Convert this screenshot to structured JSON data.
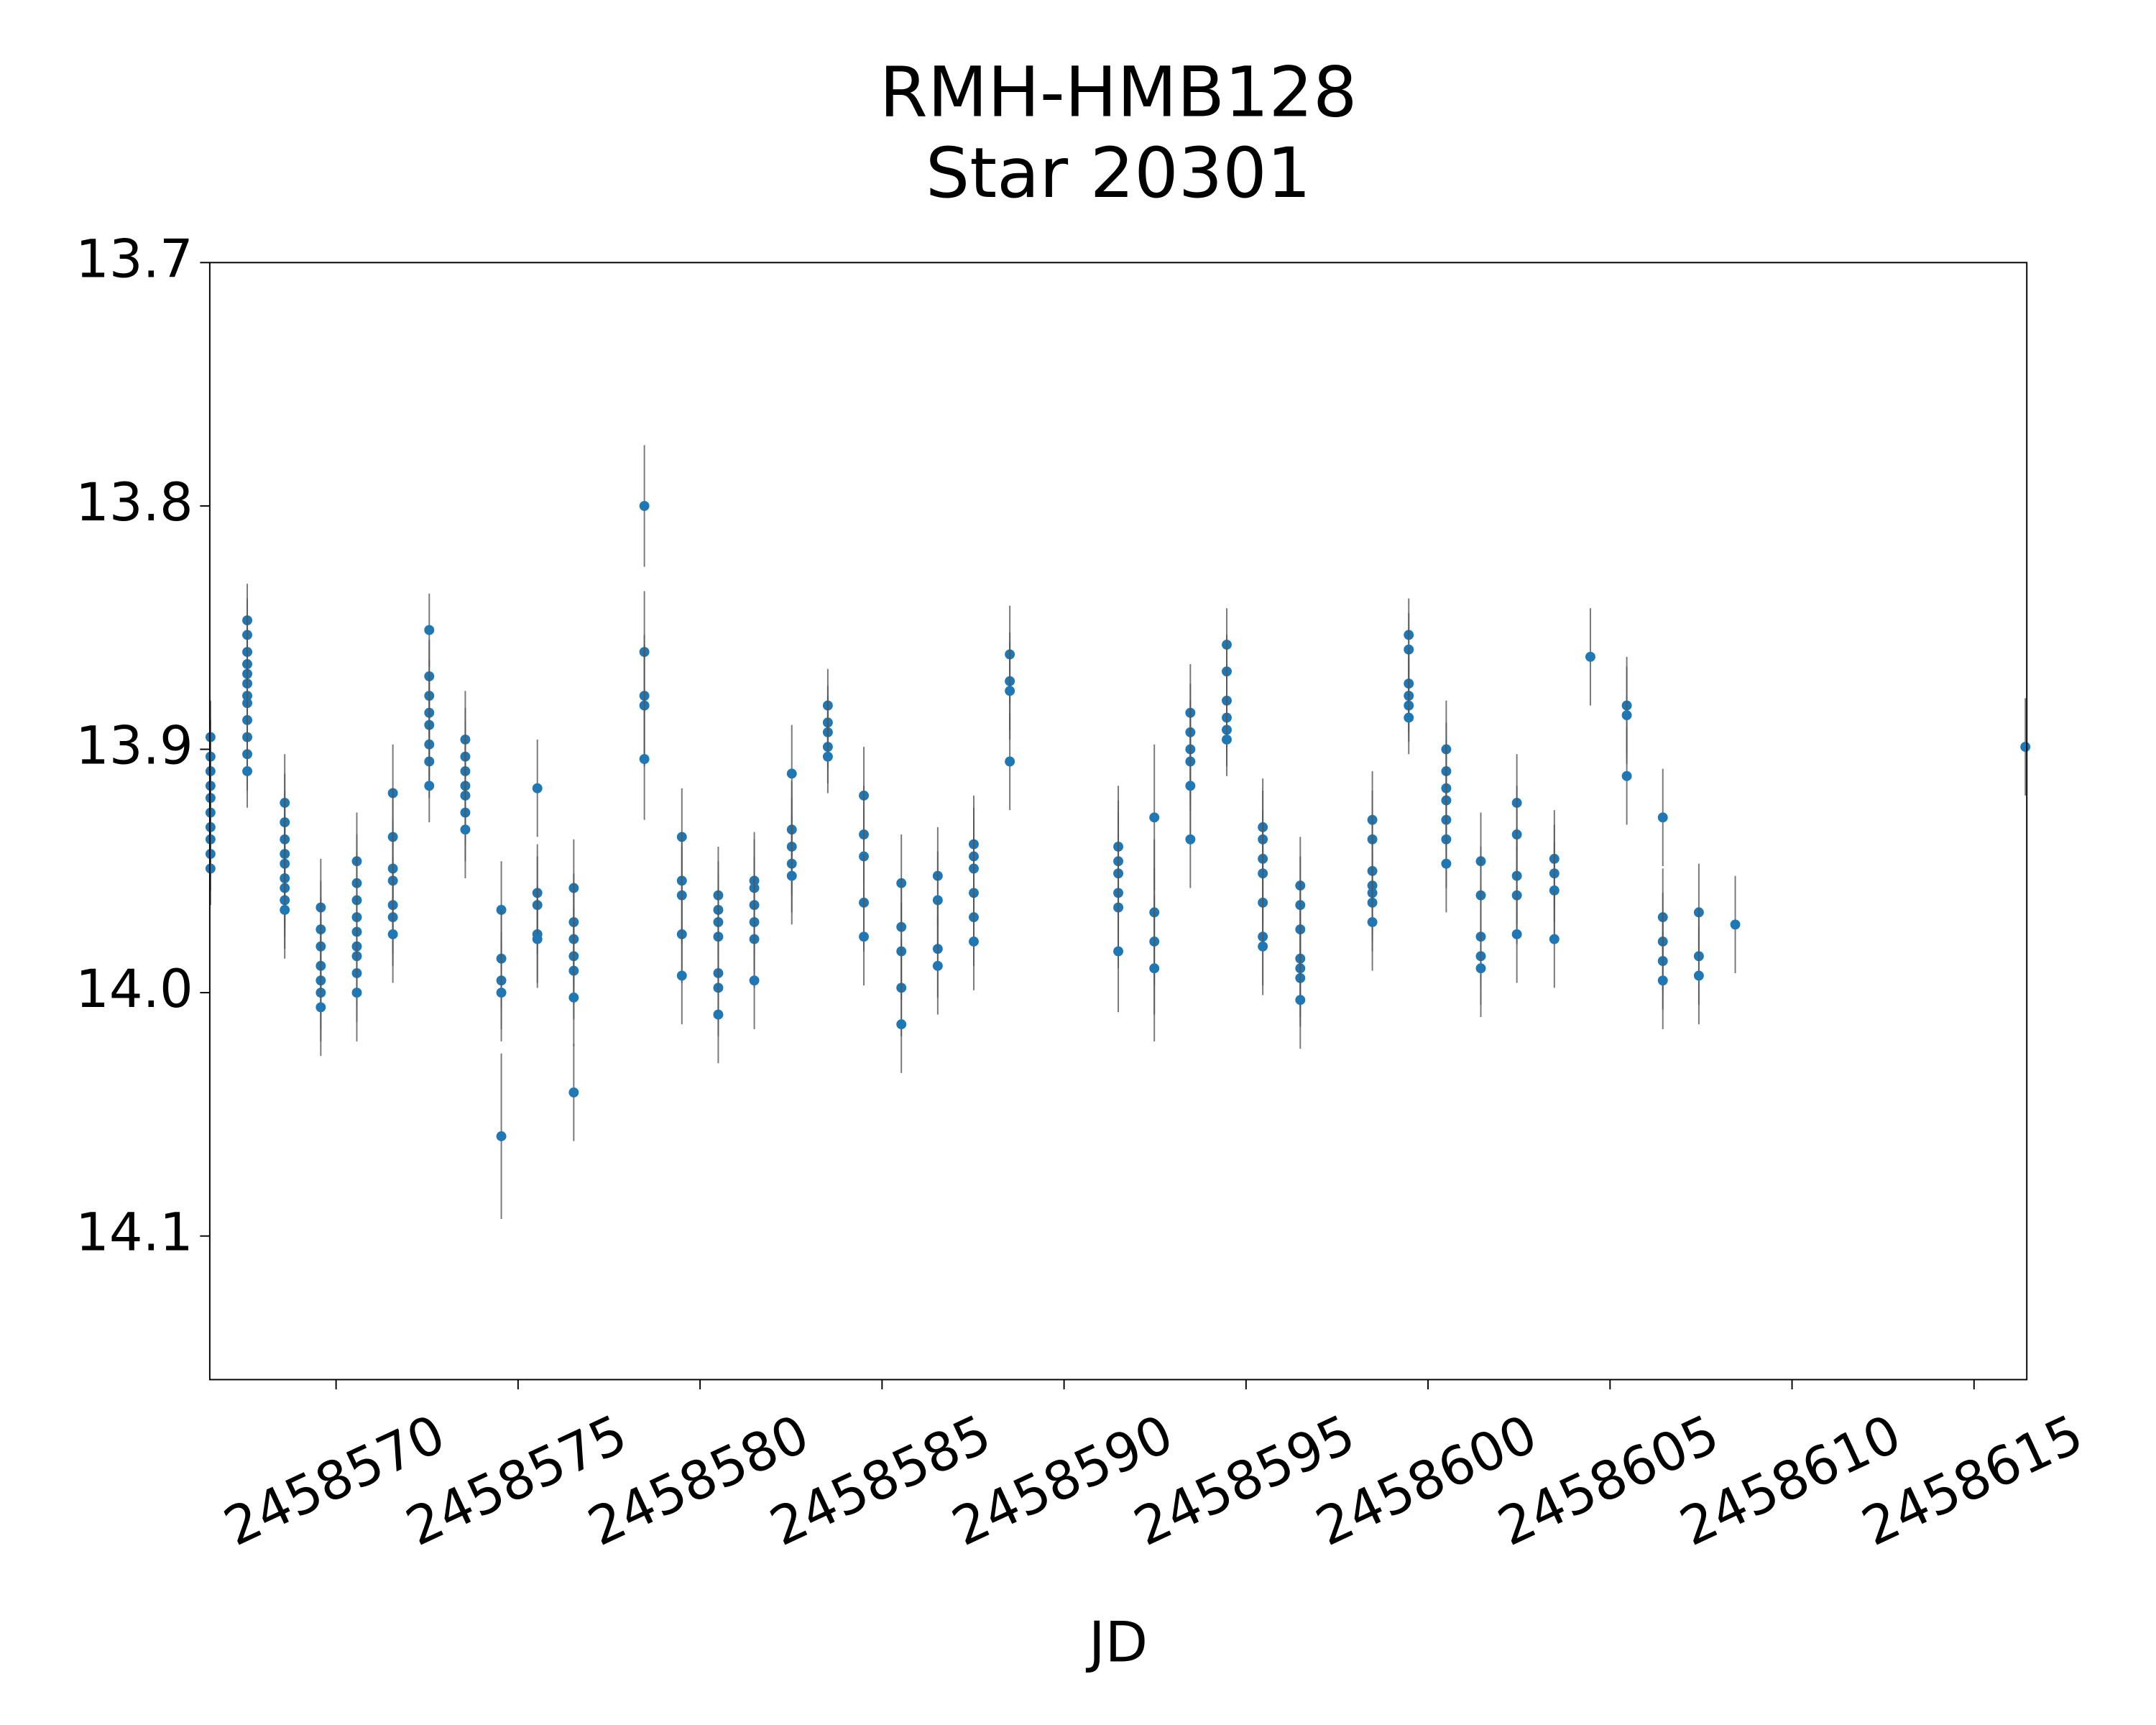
{
  "chart_data": {
    "type": "scatter",
    "title": "RMH-HMB128",
    "subtitle": "Star 20301",
    "x_label": "JD",
    "xlim": [
      2458566.53,
      2458616.45
    ],
    "ylim": [
      13.7,
      14.159
    ],
    "invert_y": true,
    "xticks": [
      2458570,
      2458575,
      2458580,
      2458585,
      2458590,
      2458595,
      2458600,
      2458605,
      2458610,
      2458615
    ],
    "yticks": [
      13.7,
      13.8,
      13.9,
      {
        "value": 14.0,
        "label": "14.0"
      },
      14.1
    ],
    "series": [
      {
        "color": "#1f77b4",
        "error_color": "#555555",
        "x": [
          2458566.55,
          2458566.55,
          2458566.55,
          2458566.55,
          2458566.55,
          2458566.55,
          2458566.55,
          2458566.55,
          2458566.55,
          2458566.55,
          2458567.56,
          2458567.56,
          2458567.56,
          2458567.56,
          2458567.56,
          2458567.56,
          2458567.56,
          2458567.56,
          2458567.56,
          2458567.56,
          2458567.56,
          2458567.56,
          2458568.59,
          2458568.59,
          2458568.59,
          2458568.59,
          2458568.59,
          2458568.59,
          2458568.59,
          2458568.59,
          2458568.59,
          2458569.58,
          2458569.58,
          2458569.58,
          2458569.58,
          2458569.58,
          2458569.58,
          2458569.58,
          2458570.57,
          2458570.57,
          2458570.57,
          2458570.57,
          2458570.57,
          2458570.57,
          2458570.57,
          2458570.57,
          2458570.57,
          2458571.56,
          2458571.56,
          2458571.56,
          2458571.56,
          2458571.56,
          2458571.56,
          2458571.56,
          2458572.56,
          2458572.56,
          2458572.56,
          2458572.56,
          2458572.56,
          2458572.56,
          2458572.56,
          2458572.56,
          2458573.55,
          2458573.55,
          2458573.55,
          2458573.55,
          2458573.55,
          2458573.55,
          2458573.55,
          2458574.54,
          2458574.54,
          2458574.54,
          2458574.54,
          2458574.54,
          2458575.53,
          2458575.53,
          2458575.53,
          2458575.53,
          2458575.53,
          2458576.53,
          2458576.53,
          2458576.53,
          2458576.53,
          2458576.53,
          2458576.53,
          2458576.53,
          2458578.47,
          2458578.47,
          2458578.47,
          2458578.47,
          2458578.47,
          2458579.5,
          2458579.5,
          2458579.5,
          2458579.5,
          2458579.5,
          2458580.5,
          2458580.5,
          2458580.5,
          2458580.5,
          2458580.5,
          2458580.5,
          2458580.5,
          2458581.49,
          2458581.49,
          2458581.49,
          2458581.49,
          2458581.49,
          2458581.49,
          2458582.52,
          2458582.52,
          2458582.52,
          2458582.52,
          2458582.52,
          2458583.51,
          2458583.51,
          2458583.51,
          2458583.51,
          2458583.51,
          2458584.5,
          2458584.5,
          2458584.5,
          2458584.5,
          2458584.5,
          2458585.53,
          2458585.53,
          2458585.53,
          2458585.53,
          2458585.53,
          2458586.53,
          2458586.53,
          2458586.53,
          2458586.53,
          2458587.52,
          2458587.52,
          2458587.52,
          2458587.52,
          2458587.52,
          2458587.52,
          2458588.51,
          2458588.51,
          2458588.51,
          2458588.51,
          2458591.49,
          2458591.49,
          2458591.49,
          2458591.49,
          2458591.49,
          2458591.49,
          2458592.48,
          2458592.48,
          2458592.48,
          2458592.48,
          2458593.47,
          2458593.47,
          2458593.47,
          2458593.47,
          2458593.47,
          2458593.47,
          2458594.47,
          2458594.47,
          2458594.47,
          2458594.47,
          2458594.47,
          2458594.47,
          2458595.46,
          2458595.46,
          2458595.46,
          2458595.46,
          2458595.46,
          2458595.46,
          2458595.46,
          2458596.49,
          2458596.49,
          2458596.49,
          2458596.49,
          2458596.49,
          2458596.49,
          2458596.49,
          2458598.47,
          2458598.47,
          2458598.47,
          2458598.47,
          2458598.47,
          2458598.47,
          2458598.47,
          2458599.47,
          2458599.47,
          2458599.47,
          2458599.47,
          2458599.47,
          2458599.47,
          2458600.5,
          2458600.5,
          2458600.5,
          2458600.5,
          2458600.5,
          2458600.5,
          2458600.5,
          2458601.45,
          2458601.45,
          2458601.45,
          2458601.45,
          2458601.45,
          2458602.44,
          2458602.44,
          2458602.44,
          2458602.44,
          2458602.44,
          2458603.47,
          2458603.47,
          2458603.47,
          2458603.47,
          2458604.46,
          2458605.46,
          2458605.46,
          2458605.46,
          2458606.45,
          2458606.45,
          2458606.45,
          2458606.45,
          2458606.45,
          2458607.44,
          2458607.44,
          2458607.44,
          2458608.44,
          2458616.41
        ],
        "values": [
          13.895,
          13.903,
          13.909,
          13.915,
          13.92,
          13.926,
          13.932,
          13.937,
          13.943,
          13.949,
          13.847,
          13.853,
          13.86,
          13.865,
          13.869,
          13.873,
          13.878,
          13.881,
          13.888,
          13.895,
          13.902,
          13.909,
          13.922,
          13.93,
          13.937,
          13.943,
          13.947,
          13.953,
          13.957,
          13.962,
          13.966,
          13.965,
          13.974,
          13.981,
          13.989,
          13.995,
          14.0,
          14.006,
          13.946,
          13.955,
          13.962,
          13.969,
          13.975,
          13.981,
          13.985,
          13.992,
          14.0,
          13.918,
          13.936,
          13.949,
          13.954,
          13.964,
          13.969,
          13.976,
          13.851,
          13.87,
          13.878,
          13.885,
          13.89,
          13.898,
          13.905,
          13.915,
          13.896,
          13.903,
          13.909,
          13.915,
          13.919,
          13.926,
          13.933,
          13.966,
          13.986,
          13.995,
          14.0,
          14.059,
          13.916,
          13.959,
          13.964,
          13.976,
          13.978,
          13.957,
          13.971,
          13.978,
          13.985,
          13.991,
          14.002,
          14.041,
          13.8,
          13.86,
          13.878,
          13.882,
          13.904,
          13.936,
          13.954,
          13.96,
          13.976,
          13.993,
          13.96,
          13.966,
          13.971,
          13.977,
          13.992,
          13.998,
          14.009,
          13.954,
          13.957,
          13.964,
          13.971,
          13.978,
          13.995,
          13.91,
          13.933,
          13.94,
          13.947,
          13.952,
          13.882,
          13.889,
          13.893,
          13.899,
          13.903,
          13.919,
          13.935,
          13.944,
          13.963,
          13.977,
          13.955,
          13.973,
          13.983,
          13.998,
          14.013,
          13.952,
          13.962,
          13.982,
          13.989,
          13.939,
          13.944,
          13.949,
          13.959,
          13.969,
          13.979,
          13.861,
          13.872,
          13.876,
          13.905,
          13.94,
          13.946,
          13.951,
          13.959,
          13.965,
          13.983,
          13.928,
          13.967,
          13.979,
          13.99,
          13.885,
          13.893,
          13.9,
          13.905,
          13.915,
          13.937,
          13.857,
          13.868,
          13.88,
          13.887,
          13.892,
          13.896,
          13.932,
          13.937,
          13.945,
          13.951,
          13.963,
          13.977,
          13.981,
          13.956,
          13.964,
          13.974,
          13.986,
          13.99,
          13.994,
          14.003,
          13.929,
          13.937,
          13.95,
          13.956,
          13.959,
          13.963,
          13.971,
          13.853,
          13.859,
          13.873,
          13.878,
          13.882,
          13.887,
          13.9,
          13.909,
          13.916,
          13.921,
          13.929,
          13.937,
          13.947,
          13.946,
          13.96,
          13.977,
          13.985,
          13.99,
          13.922,
          13.935,
          13.952,
          13.96,
          13.976,
          13.945,
          13.951,
          13.958,
          13.978,
          13.862,
          13.882,
          13.886,
          13.911,
          13.928,
          13.969,
          13.979,
          13.987,
          13.995,
          13.967,
          13.985,
          13.993,
          13.972,
          13.899
        ],
        "errors": [
          0.015,
          0.015,
          0.015,
          0.015,
          0.015,
          0.015,
          0.015,
          0.015,
          0.015,
          0.015,
          0.015,
          0.015,
          0.015,
          0.015,
          0.015,
          0.015,
          0.015,
          0.015,
          0.015,
          0.015,
          0.015,
          0.015,
          0.02,
          0.02,
          0.02,
          0.02,
          0.02,
          0.02,
          0.02,
          0.02,
          0.02,
          0.02,
          0.02,
          0.02,
          0.02,
          0.02,
          0.02,
          0.02,
          0.02,
          0.02,
          0.02,
          0.02,
          0.02,
          0.02,
          0.02,
          0.02,
          0.02,
          0.02,
          0.02,
          0.02,
          0.02,
          0.02,
          0.02,
          0.02,
          0.015,
          0.015,
          0.015,
          0.015,
          0.015,
          0.015,
          0.015,
          0.015,
          0.02,
          0.02,
          0.02,
          0.02,
          0.02,
          0.02,
          0.02,
          0.02,
          0.02,
          0.02,
          0.02,
          0.034,
          0.02,
          0.02,
          0.02,
          0.02,
          0.02,
          0.02,
          0.02,
          0.02,
          0.02,
          0.02,
          0.02,
          0.02,
          0.025,
          0.025,
          0.025,
          0.025,
          0.025,
          0.02,
          0.02,
          0.02,
          0.02,
          0.02,
          0.02,
          0.02,
          0.02,
          0.02,
          0.02,
          0.02,
          0.02,
          0.02,
          0.02,
          0.02,
          0.02,
          0.02,
          0.02,
          0.02,
          0.02,
          0.02,
          0.02,
          0.02,
          0.015,
          0.015,
          0.015,
          0.015,
          0.015,
          0.02,
          0.02,
          0.02,
          0.02,
          0.02,
          0.02,
          0.02,
          0.02,
          0.02,
          0.02,
          0.02,
          0.02,
          0.02,
          0.02,
          0.02,
          0.02,
          0.02,
          0.02,
          0.02,
          0.02,
          0.02,
          0.02,
          0.02,
          0.02,
          0.025,
          0.025,
          0.025,
          0.025,
          0.025,
          0.025,
          0.03,
          0.03,
          0.03,
          0.03,
          0.02,
          0.02,
          0.02,
          0.02,
          0.02,
          0.02,
          0.015,
          0.015,
          0.015,
          0.015,
          0.015,
          0.015,
          0.02,
          0.02,
          0.02,
          0.02,
          0.02,
          0.02,
          0.02,
          0.02,
          0.02,
          0.02,
          0.02,
          0.02,
          0.02,
          0.02,
          0.02,
          0.02,
          0.02,
          0.02,
          0.02,
          0.02,
          0.02,
          0.015,
          0.015,
          0.015,
          0.015,
          0.015,
          0.015,
          0.02,
          0.02,
          0.02,
          0.02,
          0.02,
          0.02,
          0.02,
          0.02,
          0.02,
          0.02,
          0.02,
          0.02,
          0.02,
          0.02,
          0.02,
          0.02,
          0.02,
          0.02,
          0.02,
          0.02,
          0.02,
          0.02,
          0.02,
          0.02,
          0.02,
          0.02,
          0.02,
          0.02,
          0.02,
          0.02,
          0.02,
          0.02,
          0.02,
          0.02,
          0.02
        ]
      }
    ]
  }
}
